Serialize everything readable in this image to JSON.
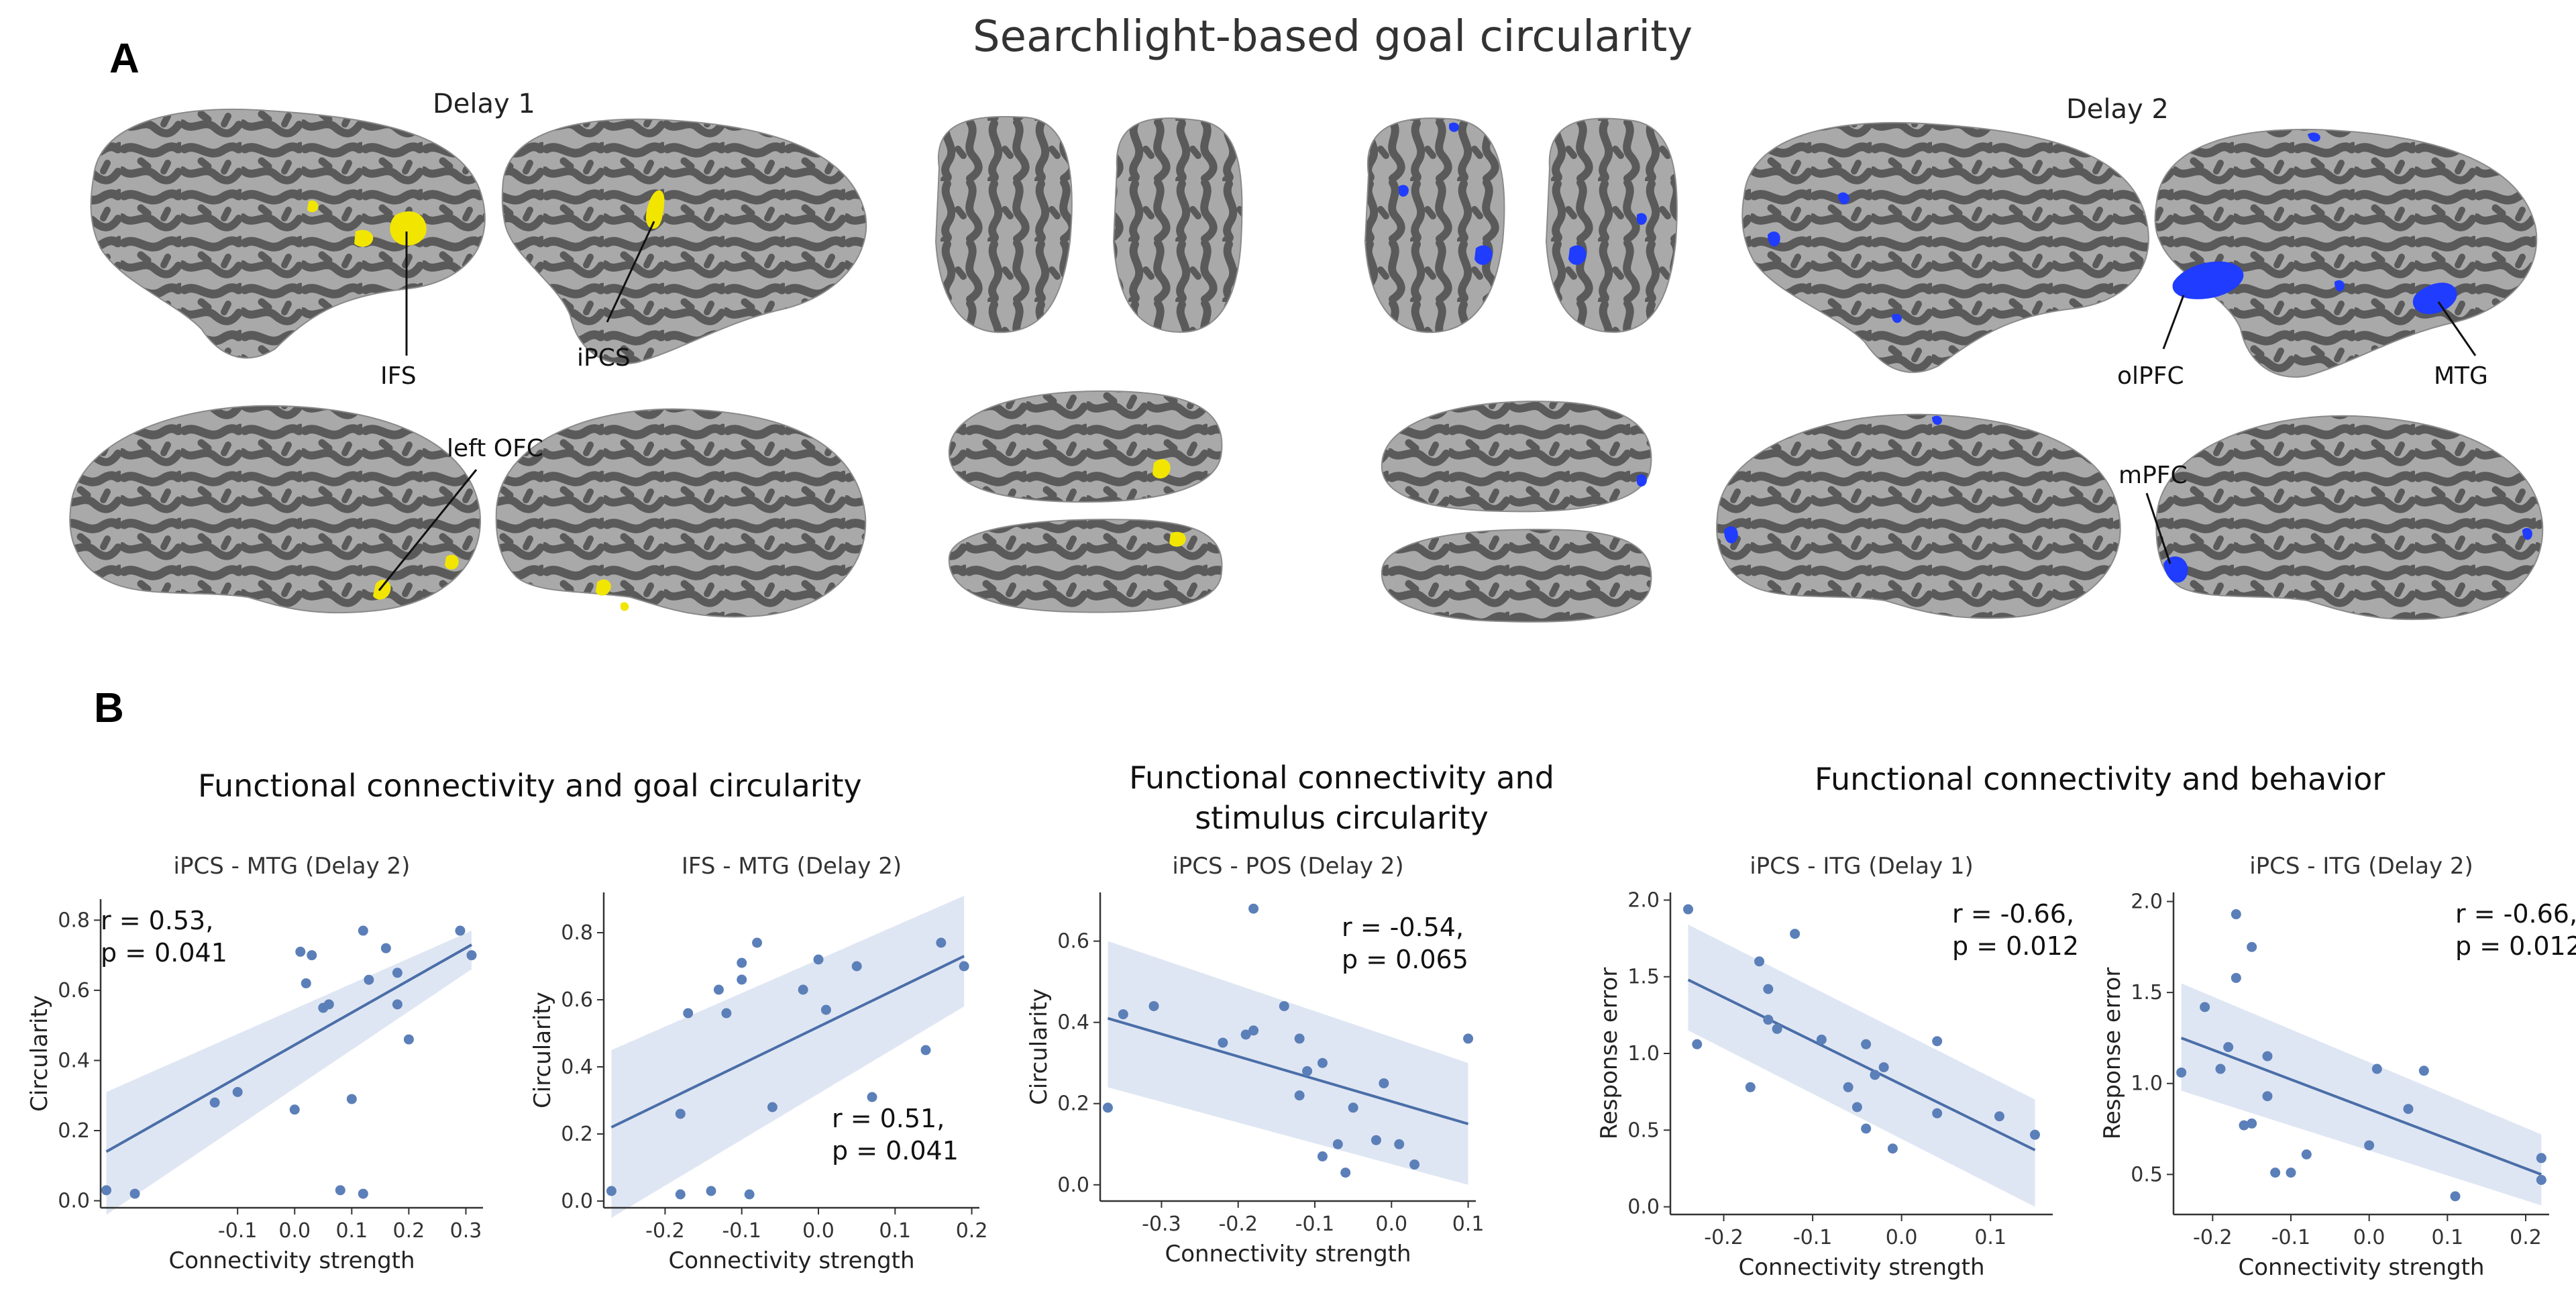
{
  "figure": {
    "title": "Searchlight-based goal circularity",
    "panel_a": "A",
    "panel_b": "B",
    "delay1_label": "Delay 1",
    "delay2_label": "Delay 2",
    "colors": {
      "delay1": "#f2e600",
      "delay2": "#1f3cff",
      "cortex_light": "#a9a9a9",
      "cortex_dark": "#555555"
    },
    "roi_labels": {
      "ifs": "IFS",
      "ipcs": "iPCS",
      "left_ofc": "left OFC",
      "olpfc": "olPFC",
      "mtg": "MTG",
      "mpfc": "mPFC"
    },
    "group_titles": {
      "goal": "Functional connectivity and goal circularity",
      "stim_line1": "Functional connectivity and",
      "stim_line2": "stimulus circularity",
      "behavior": "Functional connectivity and behavior"
    }
  },
  "chart_data": [
    {
      "type": "scatter",
      "title": "iPCS - MTG (Delay 2)",
      "xlabel": "Connectivity strength",
      "ylabel": "Circularity",
      "xlim": [
        -0.34,
        0.33
      ],
      "ylim": [
        -0.02,
        0.86
      ],
      "xticks": [
        -0.1,
        0.0,
        0.1,
        0.2,
        0.3
      ],
      "yticks": [
        0.0,
        0.2,
        0.4,
        0.6,
        0.8
      ],
      "annotation": {
        "r": "r = 0.53,",
        "p": "p = 0.041"
      },
      "points": [
        [
          -0.33,
          0.03
        ],
        [
          -0.28,
          0.02
        ],
        [
          -0.14,
          0.28
        ],
        [
          -0.1,
          0.31
        ],
        [
          0.0,
          0.26
        ],
        [
          0.01,
          0.71
        ],
        [
          0.02,
          0.62
        ],
        [
          0.03,
          0.7
        ],
        [
          0.05,
          0.55
        ],
        [
          0.06,
          0.56
        ],
        [
          0.08,
          0.03
        ],
        [
          0.1,
          0.29
        ],
        [
          0.12,
          0.77
        ],
        [
          0.12,
          0.02
        ],
        [
          0.13,
          0.63
        ],
        [
          0.16,
          0.72
        ],
        [
          0.18,
          0.65
        ],
        [
          0.18,
          0.56
        ],
        [
          0.2,
          0.46
        ],
        [
          0.29,
          0.77
        ],
        [
          0.31,
          0.7
        ]
      ],
      "fit": {
        "x": [
          -0.33,
          0.31
        ],
        "y": [
          0.14,
          0.73
        ]
      },
      "band_upper": [
        0.31,
        0.77
      ],
      "band_lower": [
        -0.04,
        0.66
      ]
    },
    {
      "type": "scatter",
      "title": "IFS - MTG (Delay 2)",
      "xlabel": "Connectivity strength",
      "ylabel": "Circularity",
      "xlim": [
        -0.28,
        0.21
      ],
      "ylim": [
        -0.02,
        0.92
      ],
      "xticks": [
        -0.2,
        -0.1,
        0.0,
        0.1,
        0.2
      ],
      "yticks": [
        0.0,
        0.2,
        0.4,
        0.6,
        0.8
      ],
      "annotation": {
        "r": "r = 0.51,",
        "p": "p = 0.041"
      },
      "points": [
        [
          -0.27,
          0.03
        ],
        [
          -0.18,
          0.02
        ],
        [
          -0.17,
          0.56
        ],
        [
          -0.18,
          0.26
        ],
        [
          -0.14,
          0.03
        ],
        [
          -0.12,
          0.56
        ],
        [
          -0.13,
          0.63
        ],
        [
          -0.1,
          0.71
        ],
        [
          -0.1,
          0.66
        ],
        [
          -0.08,
          0.77
        ],
        [
          -0.09,
          0.02
        ],
        [
          -0.06,
          0.28
        ],
        [
          -0.02,
          0.63
        ],
        [
          0.0,
          0.72
        ],
        [
          0.01,
          0.57
        ],
        [
          0.05,
          0.7
        ],
        [
          0.07,
          0.31
        ],
        [
          0.14,
          0.45
        ],
        [
          0.16,
          0.77
        ],
        [
          0.19,
          0.7
        ]
      ],
      "fit": {
        "x": [
          -0.27,
          0.19
        ],
        "y": [
          0.22,
          0.73
        ]
      },
      "band_upper": [
        0.45,
        0.91
      ],
      "band_lower": [
        -0.05,
        0.58
      ]
    },
    {
      "type": "scatter",
      "title": "iPCS - POS (Delay 2)",
      "xlabel": "Connectivity strength",
      "ylabel": "Circularity",
      "xlim": [
        -0.38,
        0.11
      ],
      "ylim": [
        -0.04,
        0.72
      ],
      "xticks": [
        -0.3,
        -0.2,
        -0.1,
        0.0,
        0.1
      ],
      "yticks": [
        0.0,
        0.2,
        0.4,
        0.6
      ],
      "annotation": {
        "r": "r = -0.54,",
        "p": "p = 0.065"
      },
      "points": [
        [
          -0.37,
          0.19
        ],
        [
          -0.35,
          0.42
        ],
        [
          -0.31,
          0.44
        ],
        [
          -0.22,
          0.35
        ],
        [
          -0.19,
          0.37
        ],
        [
          -0.18,
          0.38
        ],
        [
          -0.18,
          0.68
        ],
        [
          -0.14,
          0.44
        ],
        [
          -0.12,
          0.36
        ],
        [
          -0.12,
          0.22
        ],
        [
          -0.11,
          0.28
        ],
        [
          -0.09,
          0.3
        ],
        [
          -0.09,
          0.07
        ],
        [
          -0.07,
          0.1
        ],
        [
          -0.06,
          0.03
        ],
        [
          -0.05,
          0.19
        ],
        [
          -0.02,
          0.11
        ],
        [
          -0.01,
          0.25
        ],
        [
          0.01,
          0.1
        ],
        [
          0.03,
          0.05
        ],
        [
          0.1,
          0.36
        ]
      ],
      "fit": {
        "x": [
          -0.37,
          0.1
        ],
        "y": [
          0.41,
          0.15
        ]
      },
      "band_upper": [
        0.6,
        0.3
      ],
      "band_lower": [
        0.24,
        0.0
      ]
    },
    {
      "type": "scatter",
      "title": "iPCS - ITG (Delay 1)",
      "xlabel": "Connectivity strength",
      "ylabel": "Response error",
      "xlim": [
        -0.26,
        0.17
      ],
      "ylim": [
        -0.05,
        2.05
      ],
      "xticks": [
        -0.2,
        -0.1,
        0.0,
        0.1
      ],
      "yticks": [
        0.0,
        0.5,
        1.0,
        1.5,
        2.0
      ],
      "annotation": {
        "r": "r = -0.66,",
        "p": "p = 0.012"
      },
      "points": [
        [
          -0.24,
          1.94
        ],
        [
          -0.23,
          1.06
        ],
        [
          -0.17,
          0.78
        ],
        [
          -0.16,
          1.6
        ],
        [
          -0.15,
          1.42
        ],
        [
          -0.15,
          1.22
        ],
        [
          -0.14,
          1.16
        ],
        [
          -0.12,
          1.78
        ],
        [
          -0.09,
          1.09
        ],
        [
          -0.06,
          0.78
        ],
        [
          -0.05,
          0.65
        ],
        [
          -0.04,
          0.51
        ],
        [
          -0.04,
          1.06
        ],
        [
          -0.03,
          0.86
        ],
        [
          -0.02,
          0.91
        ],
        [
          -0.01,
          0.38
        ],
        [
          0.04,
          1.08
        ],
        [
          0.04,
          0.61
        ],
        [
          0.11,
          0.59
        ],
        [
          0.15,
          0.47
        ]
      ],
      "fit": {
        "x": [
          -0.24,
          0.15
        ],
        "y": [
          1.48,
          0.37
        ]
      },
      "band_upper": [
        1.84,
        0.7
      ],
      "band_lower": [
        1.15,
        0.0
      ]
    },
    {
      "type": "scatter",
      "title": "iPCS - ITG (Delay 2)",
      "xlabel": "Connectivity strength",
      "ylabel": "Response error",
      "xlim": [
        -0.25,
        0.23
      ],
      "ylim": [
        0.28,
        2.05
      ],
      "xticks": [
        -0.2,
        -0.1,
        0.0,
        0.1,
        0.2
      ],
      "yticks": [
        0.5,
        1.0,
        1.5,
        2.0
      ],
      "annotation": {
        "r": "r = -0.66,",
        "p": "p = 0.012"
      },
      "points": [
        [
          -0.24,
          1.06
        ],
        [
          -0.21,
          1.42
        ],
        [
          -0.19,
          1.08
        ],
        [
          -0.18,
          1.2
        ],
        [
          -0.17,
          1.58
        ],
        [
          -0.17,
          1.93
        ],
        [
          -0.16,
          0.77
        ],
        [
          -0.15,
          1.75
        ],
        [
          -0.15,
          0.78
        ],
        [
          -0.13,
          0.93
        ],
        [
          -0.13,
          1.15
        ],
        [
          -0.12,
          0.51
        ],
        [
          -0.1,
          0.51
        ],
        [
          -0.08,
          0.61
        ],
        [
          0.0,
          0.66
        ],
        [
          0.01,
          1.08
        ],
        [
          0.05,
          0.86
        ],
        [
          0.07,
          1.07
        ],
        [
          0.11,
          0.38
        ],
        [
          0.22,
          0.59
        ],
        [
          0.22,
          0.47
        ]
      ],
      "fit": {
        "x": [
          -0.24,
          0.22
        ],
        "y": [
          1.25,
          0.5
        ]
      },
      "band_upper": [
        1.55,
        0.72
      ],
      "band_lower": [
        0.96,
        0.33
      ]
    }
  ]
}
